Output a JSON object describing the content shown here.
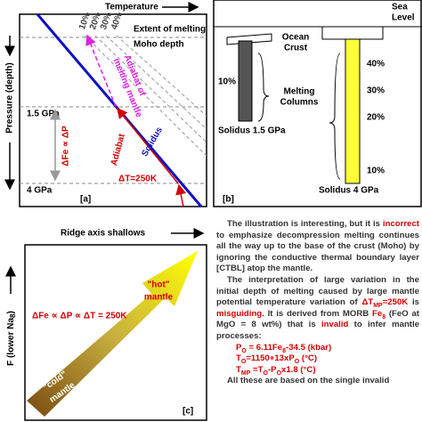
{
  "panel_a": {
    "x_axis": "Temperature",
    "y_axis": "Pressure (depth)",
    "extent_label": "Extent of melting",
    "moho": "Moho depth",
    "extent_ticks": [
      "10%",
      "20%",
      "30%",
      "40%"
    ],
    "adiabat_melting": [
      "Adiabat of",
      "melting mantle"
    ],
    "p1": "1.5 GPa",
    "p2": "4 GPa",
    "delta_fe": "ΔFe ∝ ΔP",
    "adiabat": "Adiabat",
    "solidus": "Solidus",
    "delta_t": "ΔT=250K",
    "tag": "[a]"
  },
  "panel_b": {
    "sea_level": [
      "Sea",
      "Level"
    ],
    "ocean_crust": [
      "Ocean",
      "Crust"
    ],
    "left_pct": "10%",
    "right_pcts": [
      "40%",
      "30%",
      "20%",
      "10%"
    ],
    "melting_columns": [
      "Melting",
      "Columns"
    ],
    "solidus1": "Solidus 1.5 GPa",
    "solidus2": "Solidus 4 GPa",
    "tag": "[b]"
  },
  "panel_c": {
    "title": "Ridge axis shallows",
    "y_axis": {
      "prefix": "F (lower Na",
      "sub": "8",
      "suffix": ")"
    },
    "relation": "ΔFe ∝ ΔP ∝ ΔT = 250K",
    "hot": [
      "\"hot\"",
      "mantle"
    ],
    "cold": [
      "\"cold\"",
      "mantle"
    ],
    "tag": "[c]"
  },
  "text": {
    "paragraphs": [
      {
        "runs": [
          {
            "text": "The illustration is interesting, but it is "
          },
          {
            "text": "incorrect",
            "color": "#d40000"
          },
          {
            "text": " to emphasize decompression melting continues all the way up to the base of the crust (Moho) by ignoring the conductive thermal boundary layer [CTBL] atop the mantle."
          }
        ]
      },
      {
        "runs": [
          {
            "text": "The interpretation of large variation in the initial depth of melting caused by large mantle potential temperature variation of "
          },
          {
            "text": "ΔT",
            "color": "#d40000"
          },
          {
            "text": "MP",
            "color": "#d40000",
            "sub": true
          },
          {
            "text": "=250K",
            "color": "#d40000"
          },
          {
            "text": " is "
          },
          {
            "text": "misguiding",
            "color": "#d40000"
          },
          {
            "text": ". It is derived from MORB "
          },
          {
            "text": "Fe",
            "color": "#d40000"
          },
          {
            "text": "8",
            "color": "#d40000",
            "sub": true
          },
          {
            "text": " (FeO at MgO = 8 wt%) that is "
          },
          {
            "text": "invalid",
            "color": "#d40000"
          },
          {
            "text": " to infer mantle processes:"
          }
        ]
      },
      {
        "runs": [
          {
            "text": "P",
            "color": "#d40000"
          },
          {
            "text": "O",
            "color": "#d40000",
            "sub": true
          },
          {
            "text": " = 6.11Fe",
            "color": "#d40000"
          },
          {
            "text": "8",
            "color": "#d40000",
            "sub": true
          },
          {
            "text": "-34.5 (kbar)",
            "color": "#d40000"
          }
        ]
      },
      {
        "runs": [
          {
            "text": "T",
            "color": "#d40000"
          },
          {
            "text": "O",
            "color": "#d40000",
            "sub": true
          },
          {
            "text": "=1150+13xP",
            "color": "#d40000"
          },
          {
            "text": "O",
            "color": "#d40000",
            "sub": true
          },
          {
            "text": " (°C)",
            "color": "#d40000"
          }
        ]
      },
      {
        "runs": [
          {
            "text": "T",
            "color": "#d40000"
          },
          {
            "text": "MP",
            "color": "#d40000",
            "sub": true
          },
          {
            "text": " =T",
            "color": "#d40000"
          },
          {
            "text": "O",
            "color": "#d40000",
            "sub": true
          },
          {
            "text": "-P",
            "color": "#d40000"
          },
          {
            "text": "O",
            "color": "#d40000",
            "sub": true
          },
          {
            "text": "x1.8 (°C)",
            "color": "#d40000"
          }
        ]
      },
      {
        "runs": [
          {
            "text": "All these are based on the single invalid"
          }
        ]
      }
    ]
  }
}
